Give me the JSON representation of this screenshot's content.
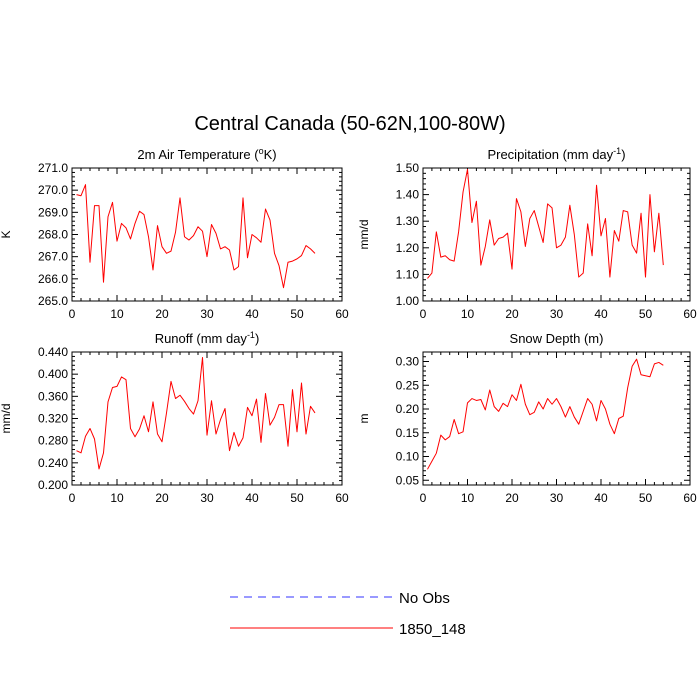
{
  "figure": {
    "title": "Central Canada (50-62N,100-80W)"
  },
  "legend": {
    "placement": "bottom-center",
    "entries": [
      {
        "label": "No Obs",
        "color": "#3333ff",
        "dash": "dashed"
      },
      {
        "label": "1850_148",
        "color": "#ff0000",
        "dash": "solid"
      }
    ]
  },
  "chart_data": [
    {
      "type": "line",
      "title": "2m Air Temperature (°K)",
      "title_main": "2m Air Temperature (",
      "title_sup": "o",
      "title_end": "K)",
      "ylabel": "K",
      "xlim": [
        0,
        60
      ],
      "ylim": [
        265.0,
        271.0
      ],
      "xticks": [
        "0",
        "10",
        "20",
        "30",
        "40",
        "50",
        "60"
      ],
      "xtick_values": [
        0,
        10,
        20,
        30,
        40,
        50,
        60
      ],
      "yticks": [
        "265.0",
        "266.0",
        "267.0",
        "268.0",
        "269.0",
        "270.0",
        "271.0"
      ],
      "ytick_values": [
        265.0,
        266.0,
        267.0,
        268.0,
        269.0,
        270.0,
        271.0
      ],
      "grid": false,
      "series": [
        {
          "name": "1850_148",
          "color": "#ff0000",
          "x": [
            1,
            2,
            3,
            4,
            5,
            6,
            7,
            8,
            9,
            10,
            11,
            12,
            13,
            14,
            15,
            16,
            17,
            18,
            19,
            20,
            21,
            22,
            23,
            24,
            25,
            26,
            27,
            28,
            29,
            30,
            31,
            32,
            33,
            34,
            35,
            36,
            37,
            38,
            39,
            40,
            41,
            42,
            43,
            44,
            45,
            46,
            47,
            48,
            49,
            50,
            51,
            52,
            53,
            54
          ],
          "y": [
            269.8,
            269.75,
            270.25,
            266.75,
            269.3,
            269.3,
            265.85,
            268.8,
            269.45,
            267.7,
            268.5,
            268.3,
            267.8,
            268.5,
            269.05,
            268.9,
            267.9,
            266.4,
            268.4,
            267.45,
            267.15,
            267.25,
            268.1,
            269.65,
            267.9,
            267.75,
            267.95,
            268.35,
            268.15,
            267.0,
            268.45,
            268.05,
            267.35,
            267.45,
            267.3,
            266.4,
            266.55,
            269.65,
            266.95,
            268.0,
            267.85,
            267.65,
            269.15,
            268.65,
            267.15,
            266.6,
            265.6,
            266.75,
            266.8,
            266.9,
            267.05,
            267.5,
            267.35,
            267.15
          ]
        }
      ]
    },
    {
      "type": "line",
      "title": "Precipitation (mm day-1)",
      "title_main": "Precipitation (mm day",
      "title_sup": "-1",
      "title_end": ")",
      "ylabel": "mm/d",
      "xlim": [
        0,
        60
      ],
      "ylim": [
        1.0,
        1.5
      ],
      "xticks": [
        "0",
        "10",
        "20",
        "30",
        "40",
        "50",
        "60"
      ],
      "xtick_values": [
        0,
        10,
        20,
        30,
        40,
        50,
        60
      ],
      "yticks": [
        "1.00",
        "1.10",
        "1.20",
        "1.30",
        "1.40",
        "1.50"
      ],
      "ytick_values": [
        1.0,
        1.1,
        1.2,
        1.3,
        1.4,
        1.5
      ],
      "grid": false,
      "series": [
        {
          "name": "1850_148",
          "color": "#ff0000",
          "x": [
            1,
            2,
            3,
            4,
            5,
            6,
            7,
            8,
            9,
            10,
            11,
            12,
            13,
            14,
            15,
            16,
            17,
            18,
            19,
            20,
            21,
            22,
            23,
            24,
            25,
            26,
            27,
            28,
            29,
            30,
            31,
            32,
            33,
            34,
            35,
            36,
            37,
            38,
            39,
            40,
            41,
            42,
            43,
            44,
            45,
            46,
            47,
            48,
            49,
            50,
            51,
            52,
            53,
            54
          ],
          "y": [
            1.085,
            1.105,
            1.26,
            1.165,
            1.17,
            1.155,
            1.15,
            1.26,
            1.41,
            1.495,
            1.295,
            1.375,
            1.135,
            1.205,
            1.305,
            1.21,
            1.235,
            1.24,
            1.255,
            1.12,
            1.385,
            1.335,
            1.205,
            1.31,
            1.34,
            1.28,
            1.22,
            1.365,
            1.35,
            1.2,
            1.21,
            1.24,
            1.36,
            1.25,
            1.09,
            1.105,
            1.29,
            1.17,
            1.435,
            1.245,
            1.31,
            1.09,
            1.265,
            1.225,
            1.34,
            1.335,
            1.21,
            1.18,
            1.33,
            1.09,
            1.4,
            1.185,
            1.33,
            1.135
          ]
        }
      ]
    },
    {
      "type": "line",
      "title": "Runoff (mm day-1)",
      "title_main": "Runoff (mm day",
      "title_sup": "-1",
      "title_end": ")",
      "ylabel": "mm/d",
      "xlim": [
        0,
        60
      ],
      "ylim": [
        0.2,
        0.44
      ],
      "xticks": [
        "0",
        "10",
        "20",
        "30",
        "40",
        "50",
        "60"
      ],
      "xtick_values": [
        0,
        10,
        20,
        30,
        40,
        50,
        60
      ],
      "yticks": [
        "0.200",
        "0.240",
        "0.280",
        "0.320",
        "0.360",
        "0.400",
        "0.440"
      ],
      "ytick_values": [
        0.2,
        0.24,
        0.28,
        0.32,
        0.36,
        0.4,
        0.44
      ],
      "grid": false,
      "series": [
        {
          "name": "1850_148",
          "color": "#ff0000",
          "x": [
            1,
            2,
            3,
            4,
            5,
            6,
            7,
            8,
            9,
            10,
            11,
            12,
            13,
            14,
            15,
            16,
            17,
            18,
            19,
            20,
            21,
            22,
            23,
            24,
            25,
            26,
            27,
            28,
            29,
            30,
            31,
            32,
            33,
            34,
            35,
            36,
            37,
            38,
            39,
            40,
            41,
            42,
            43,
            44,
            45,
            46,
            47,
            48,
            49,
            50,
            51,
            52,
            53,
            54
          ],
          "y": [
            0.262,
            0.258,
            0.288,
            0.302,
            0.283,
            0.229,
            0.258,
            0.35,
            0.376,
            0.378,
            0.395,
            0.39,
            0.302,
            0.287,
            0.301,
            0.325,
            0.296,
            0.35,
            0.292,
            0.278,
            0.33,
            0.387,
            0.356,
            0.362,
            0.351,
            0.338,
            0.328,
            0.352,
            0.43,
            0.29,
            0.352,
            0.292,
            0.318,
            0.338,
            0.262,
            0.295,
            0.27,
            0.285,
            0.34,
            0.325,
            0.355,
            0.277,
            0.365,
            0.308,
            0.322,
            0.345,
            0.345,
            0.27,
            0.372,
            0.296,
            0.384,
            0.292,
            0.342,
            0.33
          ]
        }
      ]
    },
    {
      "type": "line",
      "title": "Snow Depth (m)",
      "title_main": "Snow Depth (m)",
      "title_sup": "",
      "title_end": "",
      "ylabel": "m",
      "xlim": [
        0,
        60
      ],
      "ylim": [
        0.04,
        0.32
      ],
      "xticks": [
        "0",
        "10",
        "20",
        "30",
        "40",
        "50",
        "60"
      ],
      "xtick_values": [
        0,
        10,
        20,
        30,
        40,
        50,
        60
      ],
      "yticks": [
        "0.05",
        "0.10",
        "0.15",
        "0.20",
        "0.25",
        "0.30"
      ],
      "ytick_values": [
        0.05,
        0.1,
        0.15,
        0.2,
        0.25,
        0.3
      ],
      "grid": false,
      "series": [
        {
          "name": "1850_148",
          "color": "#ff0000",
          "x": [
            1,
            2,
            3,
            4,
            5,
            6,
            7,
            8,
            9,
            10,
            11,
            12,
            13,
            14,
            15,
            16,
            17,
            18,
            19,
            20,
            21,
            22,
            23,
            24,
            25,
            26,
            27,
            28,
            29,
            30,
            31,
            32,
            33,
            34,
            35,
            36,
            37,
            38,
            39,
            40,
            41,
            42,
            43,
            44,
            45,
            46,
            47,
            48,
            49,
            50,
            51,
            52,
            53,
            54
          ],
          "y": [
            0.073,
            0.09,
            0.107,
            0.145,
            0.135,
            0.142,
            0.178,
            0.148,
            0.152,
            0.213,
            0.222,
            0.218,
            0.22,
            0.198,
            0.24,
            0.205,
            0.195,
            0.212,
            0.205,
            0.23,
            0.218,
            0.252,
            0.21,
            0.188,
            0.193,
            0.215,
            0.2,
            0.222,
            0.21,
            0.222,
            0.205,
            0.183,
            0.205,
            0.183,
            0.168,
            0.195,
            0.222,
            0.21,
            0.175,
            0.218,
            0.2,
            0.168,
            0.148,
            0.18,
            0.185,
            0.245,
            0.29,
            0.305,
            0.272,
            0.27,
            0.268,
            0.295,
            0.298,
            0.292
          ]
        }
      ]
    }
  ]
}
